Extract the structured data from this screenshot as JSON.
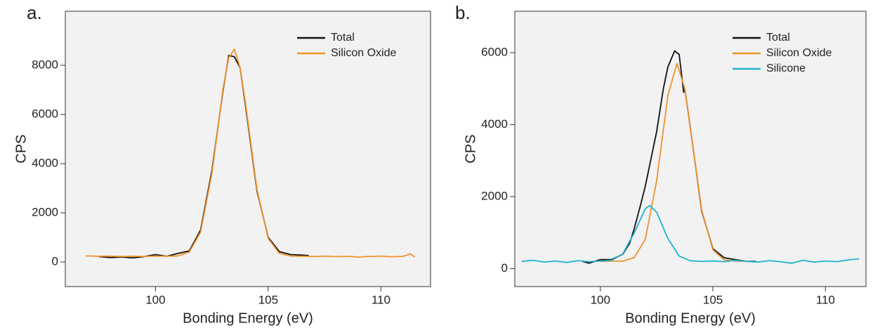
{
  "chart_data": [
    {
      "type": "line",
      "label": "a.",
      "xlabel": "Bonding Energy (eV)",
      "ylabel": "CPS",
      "xlim": [
        96,
        112.2
      ],
      "ylim": [
        -1000,
        10200
      ],
      "xticks": [
        100,
        105,
        110
      ],
      "yticks": [
        0,
        2000,
        4000,
        6000,
        8000
      ],
      "grid": false,
      "legend": "upper right",
      "series": [
        {
          "name": "Total",
          "color": "#111111",
          "x": [
            97.5,
            98,
            98.5,
            99,
            99.5,
            100,
            100.5,
            101,
            101.5,
            102,
            102.5,
            103,
            103.25,
            103.5,
            103.75,
            104,
            104.5,
            105,
            105.5,
            106,
            106.5,
            106.8
          ],
          "values": [
            220,
            180,
            200,
            170,
            220,
            300,
            230,
            350,
            450,
            1300,
            3700,
            7000,
            8400,
            8350,
            7900,
            6300,
            2900,
            1000,
            420,
            300,
            280,
            260
          ]
        },
        {
          "name": "Silicon Oxide",
          "color": "#f0922d",
          "x": [
            96.9,
            97.5,
            98,
            98.5,
            99,
            99.5,
            100,
            100.5,
            101,
            101.5,
            102,
            102.5,
            103,
            103.25,
            103.5,
            103.75,
            104,
            104.5,
            105,
            105.5,
            106,
            106.5,
            107,
            107.5,
            108,
            108.5,
            109,
            109.5,
            110,
            110.5,
            111,
            111.3,
            111.5
          ],
          "values": [
            250,
            230,
            240,
            220,
            235,
            225,
            240,
            230,
            248,
            404,
            1216,
            3582,
            7076,
            8313,
            8650,
            7909,
            6410,
            2965,
            956,
            345,
            241,
            235,
            220,
            240,
            215,
            230,
            200,
            225,
            240,
            210,
            230,
            330,
            200
          ]
        }
      ]
    },
    {
      "type": "line",
      "label": "b.",
      "xlabel": "Bonding Energy (eV)",
      "ylabel": "CPS",
      "xlim": [
        96.2,
        111.8
      ],
      "ylim": [
        -500,
        7150
      ],
      "xticks": [
        100,
        105,
        110
      ],
      "yticks": [
        0,
        2000,
        4000,
        6000
      ],
      "grid": false,
      "legend": "upper right",
      "series": [
        {
          "name": "Total",
          "color": "#111111",
          "x": [
            99.2,
            99.5,
            100,
            100.5,
            101,
            101.3,
            101.5,
            101.8,
            102,
            102.5,
            102.8,
            103,
            103.3,
            103.5,
            103.7,
            103.75,
            104,
            104.5,
            105,
            105.5,
            106,
            106.5,
            106.9
          ],
          "values": [
            200,
            150,
            250,
            250,
            400,
            700,
            1100,
            1800,
            2300,
            3800,
            5000,
            5600,
            6050,
            5950,
            4900,
            5000,
            3900,
            1600,
            550,
            300,
            250,
            200,
            200
          ]
        },
        {
          "name": "Silicon Oxide",
          "color": "#f0922d",
          "x": [
            100,
            100.5,
            101,
            101.5,
            102,
            102.5,
            103,
            103.4,
            103.75,
            104,
            104.5,
            105,
            105.5,
            106,
            106.5
          ],
          "values": [
            200,
            205,
            209,
            300,
            822,
            2436,
            4803,
            5700,
            5000,
            3887,
            1634,
            521,
            241,
            210,
            200
          ]
        },
        {
          "name": "Silicone",
          "color": "#1fb3cc",
          "x": [
            96.5,
            97,
            97.5,
            98,
            98.5,
            99,
            99.5,
            100,
            100.5,
            101,
            101.5,
            102,
            102.2,
            102.5,
            103,
            103.5,
            104,
            104.5,
            105,
            105.5,
            106,
            106.5,
            107,
            107.5,
            108,
            108.5,
            109,
            109.5,
            110,
            110.5,
            111,
            111.5
          ],
          "values": [
            200,
            230,
            180,
            210,
            170,
            220,
            190,
            210,
            228,
            410,
            985,
            1666,
            1750,
            1568,
            837,
            348,
            217,
            200,
            210,
            190,
            230,
            200,
            180,
            220,
            190,
            150,
            230,
            180,
            210,
            190,
            240,
            270
          ]
        }
      ]
    }
  ]
}
